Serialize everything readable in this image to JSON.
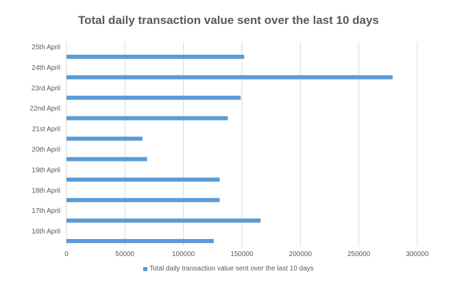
{
  "chart_data": {
    "type": "bar",
    "orientation": "horizontal",
    "title": "Total daily transaction value sent over the last 10 days",
    "categories": [
      "16th April",
      "17th April",
      "18th April",
      "19th April",
      "20th April",
      "21st April",
      "22nd April",
      "23rd April",
      "24th April",
      "25th April"
    ],
    "series": [
      {
        "name": "Total daily transaction value sent over the last 10 days",
        "values": [
          126000,
          166000,
          131000,
          131000,
          69000,
          65000,
          138000,
          149000,
          279000,
          152000
        ],
        "color": "#5B9BD5"
      }
    ],
    "xlim": [
      0,
      300000
    ],
    "xticks": [
      0,
      50000,
      100000,
      150000,
      200000,
      250000,
      300000
    ],
    "xtick_labels": [
      "0",
      "50000",
      "100000",
      "150000",
      "200000",
      "250000",
      "300000"
    ],
    "grid": "vertical",
    "legend_position": "bottom",
    "colors": {
      "gridline": "#D9D9D9",
      "text": "#595959"
    }
  }
}
